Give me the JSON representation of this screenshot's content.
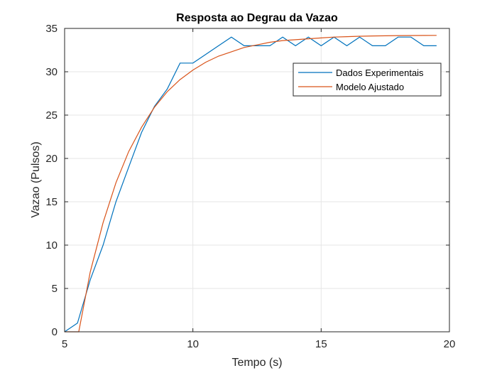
{
  "chart_data": {
    "type": "line",
    "title": "Resposta ao Degrau da Vazao",
    "xlabel": "Tempo (s)",
    "ylabel": "Vazao (Pulsos)",
    "xlim": [
      5,
      20
    ],
    "ylim": [
      0,
      35
    ],
    "xticks": [
      5,
      10,
      15,
      20
    ],
    "yticks": [
      0,
      5,
      10,
      15,
      20,
      25,
      30,
      35
    ],
    "grid": true,
    "legend_position": "top-right",
    "series": [
      {
        "name": "Dados Experimentais",
        "color": "#0072BD",
        "x": [
          5,
          5.5,
          6,
          6.5,
          7,
          7.5,
          8,
          8.5,
          9,
          9.5,
          10,
          10.5,
          11,
          11.5,
          12,
          12.5,
          13,
          13.5,
          14,
          14.5,
          15,
          15.5,
          16,
          16.5,
          17,
          17.5,
          18,
          18.5,
          19,
          19.5
        ],
        "y": [
          0,
          1,
          6,
          10,
          15,
          19,
          23,
          26,
          28,
          31,
          31,
          32,
          33,
          34,
          33,
          33,
          33,
          34,
          33,
          34,
          33,
          34,
          33,
          34,
          33,
          33,
          34,
          34,
          33,
          33
        ]
      },
      {
        "name": "Modelo Ajustado",
        "color": "#D95319",
        "x": [
          5,
          5.5,
          5.55,
          6,
          6.5,
          7,
          7.5,
          8,
          8.5,
          9,
          9.5,
          10,
          10.5,
          11,
          11.5,
          12,
          12.5,
          13,
          13.5,
          14,
          14.5,
          15,
          15.5,
          16,
          16.5,
          17,
          17.5,
          18,
          18.5,
          19,
          19.5
        ],
        "y": [
          0,
          0,
          0,
          6.9,
          12.6,
          17.2,
          20.8,
          23.6,
          25.9,
          27.7,
          29.1,
          30.2,
          31.1,
          31.8,
          32.3,
          32.8,
          33.1,
          33.4,
          33.6,
          33.7,
          33.8,
          33.9,
          34.0,
          34.05,
          34.1,
          34.13,
          34.15,
          34.17,
          34.18,
          34.19,
          34.2
        ]
      }
    ]
  }
}
